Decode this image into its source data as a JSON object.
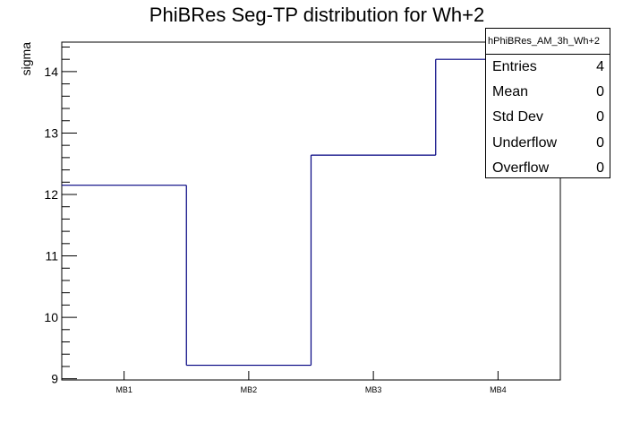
{
  "chart_data": {
    "type": "bar",
    "style": "step-histogram",
    "title": "PhiBRes Seg-TP distribution for Wh+2",
    "xlabel": "",
    "ylabel": "sigma",
    "categories": [
      "MB1",
      "MB2",
      "MB3",
      "MB4"
    ],
    "values": [
      12.15,
      9.22,
      12.64,
      14.2
    ],
    "ylim": [
      8.98,
      14.48
    ],
    "yticks": [
      9,
      10,
      11,
      12,
      13,
      14
    ],
    "line_color": "#000080",
    "grid": false
  },
  "stats": {
    "name": "hPhiBRes_AM_3h_Wh+2",
    "rows": [
      {
        "label": "Entries",
        "value": "4"
      },
      {
        "label": "Mean",
        "value": "0"
      },
      {
        "label": "Std Dev",
        "value": "0"
      },
      {
        "label": "Underflow",
        "value": "0"
      },
      {
        "label": "Overflow",
        "value": "0"
      }
    ]
  }
}
